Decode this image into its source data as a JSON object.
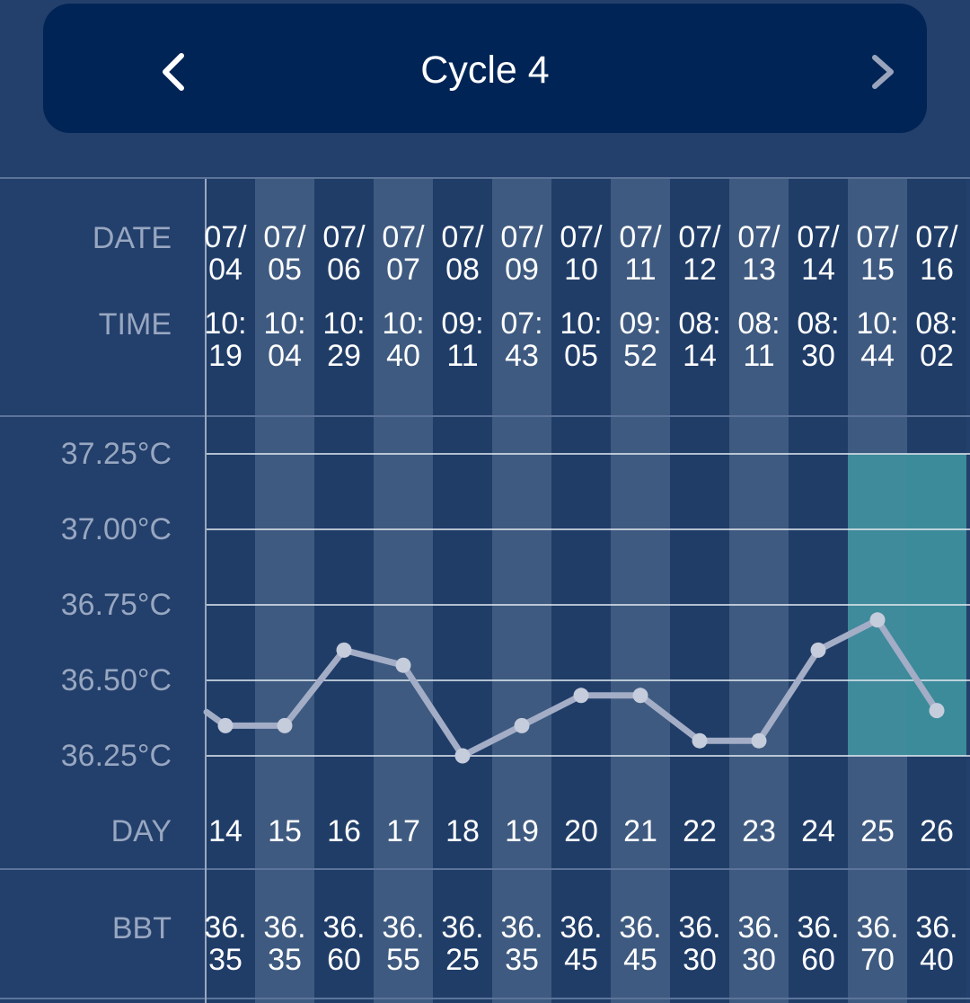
{
  "header": {
    "title": "Cycle 4",
    "prev_icon": "chevron-left-icon",
    "next_icon": "chevron-right-icon"
  },
  "labels": {
    "date": "DATE",
    "time": "TIME",
    "day": "DAY",
    "bbt": "BBT"
  },
  "y_axis": [
    "37.25°C",
    "37.00°C",
    "36.75°C",
    "36.50°C",
    "36.25°C"
  ],
  "highlight_days": [
    25,
    26
  ],
  "colors": {
    "background": "#233f6b",
    "header": "#002456",
    "column_dark": "#203d68",
    "column_light": "#3e5a80",
    "highlight": "#3f93a0",
    "line": "#a3adc6"
  },
  "columns": [
    {
      "date": [
        "07/",
        "04"
      ],
      "time": [
        "10:",
        "19"
      ],
      "day": "14",
      "bbt": [
        "36.",
        "35"
      ]
    },
    {
      "date": [
        "07/",
        "05"
      ],
      "time": [
        "10:",
        "04"
      ],
      "day": "15",
      "bbt": [
        "36.",
        "35"
      ]
    },
    {
      "date": [
        "07/",
        "06"
      ],
      "time": [
        "10:",
        "29"
      ],
      "day": "16",
      "bbt": [
        "36.",
        "60"
      ]
    },
    {
      "date": [
        "07/",
        "07"
      ],
      "time": [
        "10:",
        "40"
      ],
      "day": "17",
      "bbt": [
        "36.",
        "55"
      ]
    },
    {
      "date": [
        "07/",
        "08"
      ],
      "time": [
        "09:",
        "11"
      ],
      "day": "18",
      "bbt": [
        "36.",
        "25"
      ]
    },
    {
      "date": [
        "07/",
        "09"
      ],
      "time": [
        "07:",
        "43"
      ],
      "day": "19",
      "bbt": [
        "36.",
        "35"
      ]
    },
    {
      "date": [
        "07/",
        "10"
      ],
      "time": [
        "10:",
        "05"
      ],
      "day": "20",
      "bbt": [
        "36.",
        "45"
      ]
    },
    {
      "date": [
        "07/",
        "11"
      ],
      "time": [
        "09:",
        "52"
      ],
      "day": "21",
      "bbt": [
        "36.",
        "45"
      ]
    },
    {
      "date": [
        "07/",
        "12"
      ],
      "time": [
        "08:",
        "14"
      ],
      "day": "22",
      "bbt": [
        "36.",
        "30"
      ]
    },
    {
      "date": [
        "07/",
        "13"
      ],
      "time": [
        "08:",
        "11"
      ],
      "day": "23",
      "bbt": [
        "36.",
        "30"
      ]
    },
    {
      "date": [
        "07/",
        "14"
      ],
      "time": [
        "08:",
        "30"
      ],
      "day": "24",
      "bbt": [
        "36.",
        "60"
      ]
    },
    {
      "date": [
        "07/",
        "15"
      ],
      "time": [
        "10:",
        "44"
      ],
      "day": "25",
      "bbt": [
        "36.",
        "70"
      ]
    },
    {
      "date": [
        "07/",
        "16"
      ],
      "time": [
        "08:",
        "02"
      ],
      "day": "26",
      "bbt": [
        "36.",
        "40"
      ]
    }
  ],
  "chart_data": {
    "type": "line",
    "x": [
      14,
      15,
      16,
      17,
      18,
      19,
      20,
      21,
      22,
      23,
      24,
      25,
      26
    ],
    "series": [
      {
        "values": [
          36.35,
          36.35,
          36.6,
          36.55,
          36.25,
          36.35,
          36.45,
          36.45,
          36.3,
          36.3,
          36.6,
          36.7,
          36.4
        ]
      }
    ],
    "ylim": [
      36.25,
      37.25
    ],
    "grid": true
  }
}
